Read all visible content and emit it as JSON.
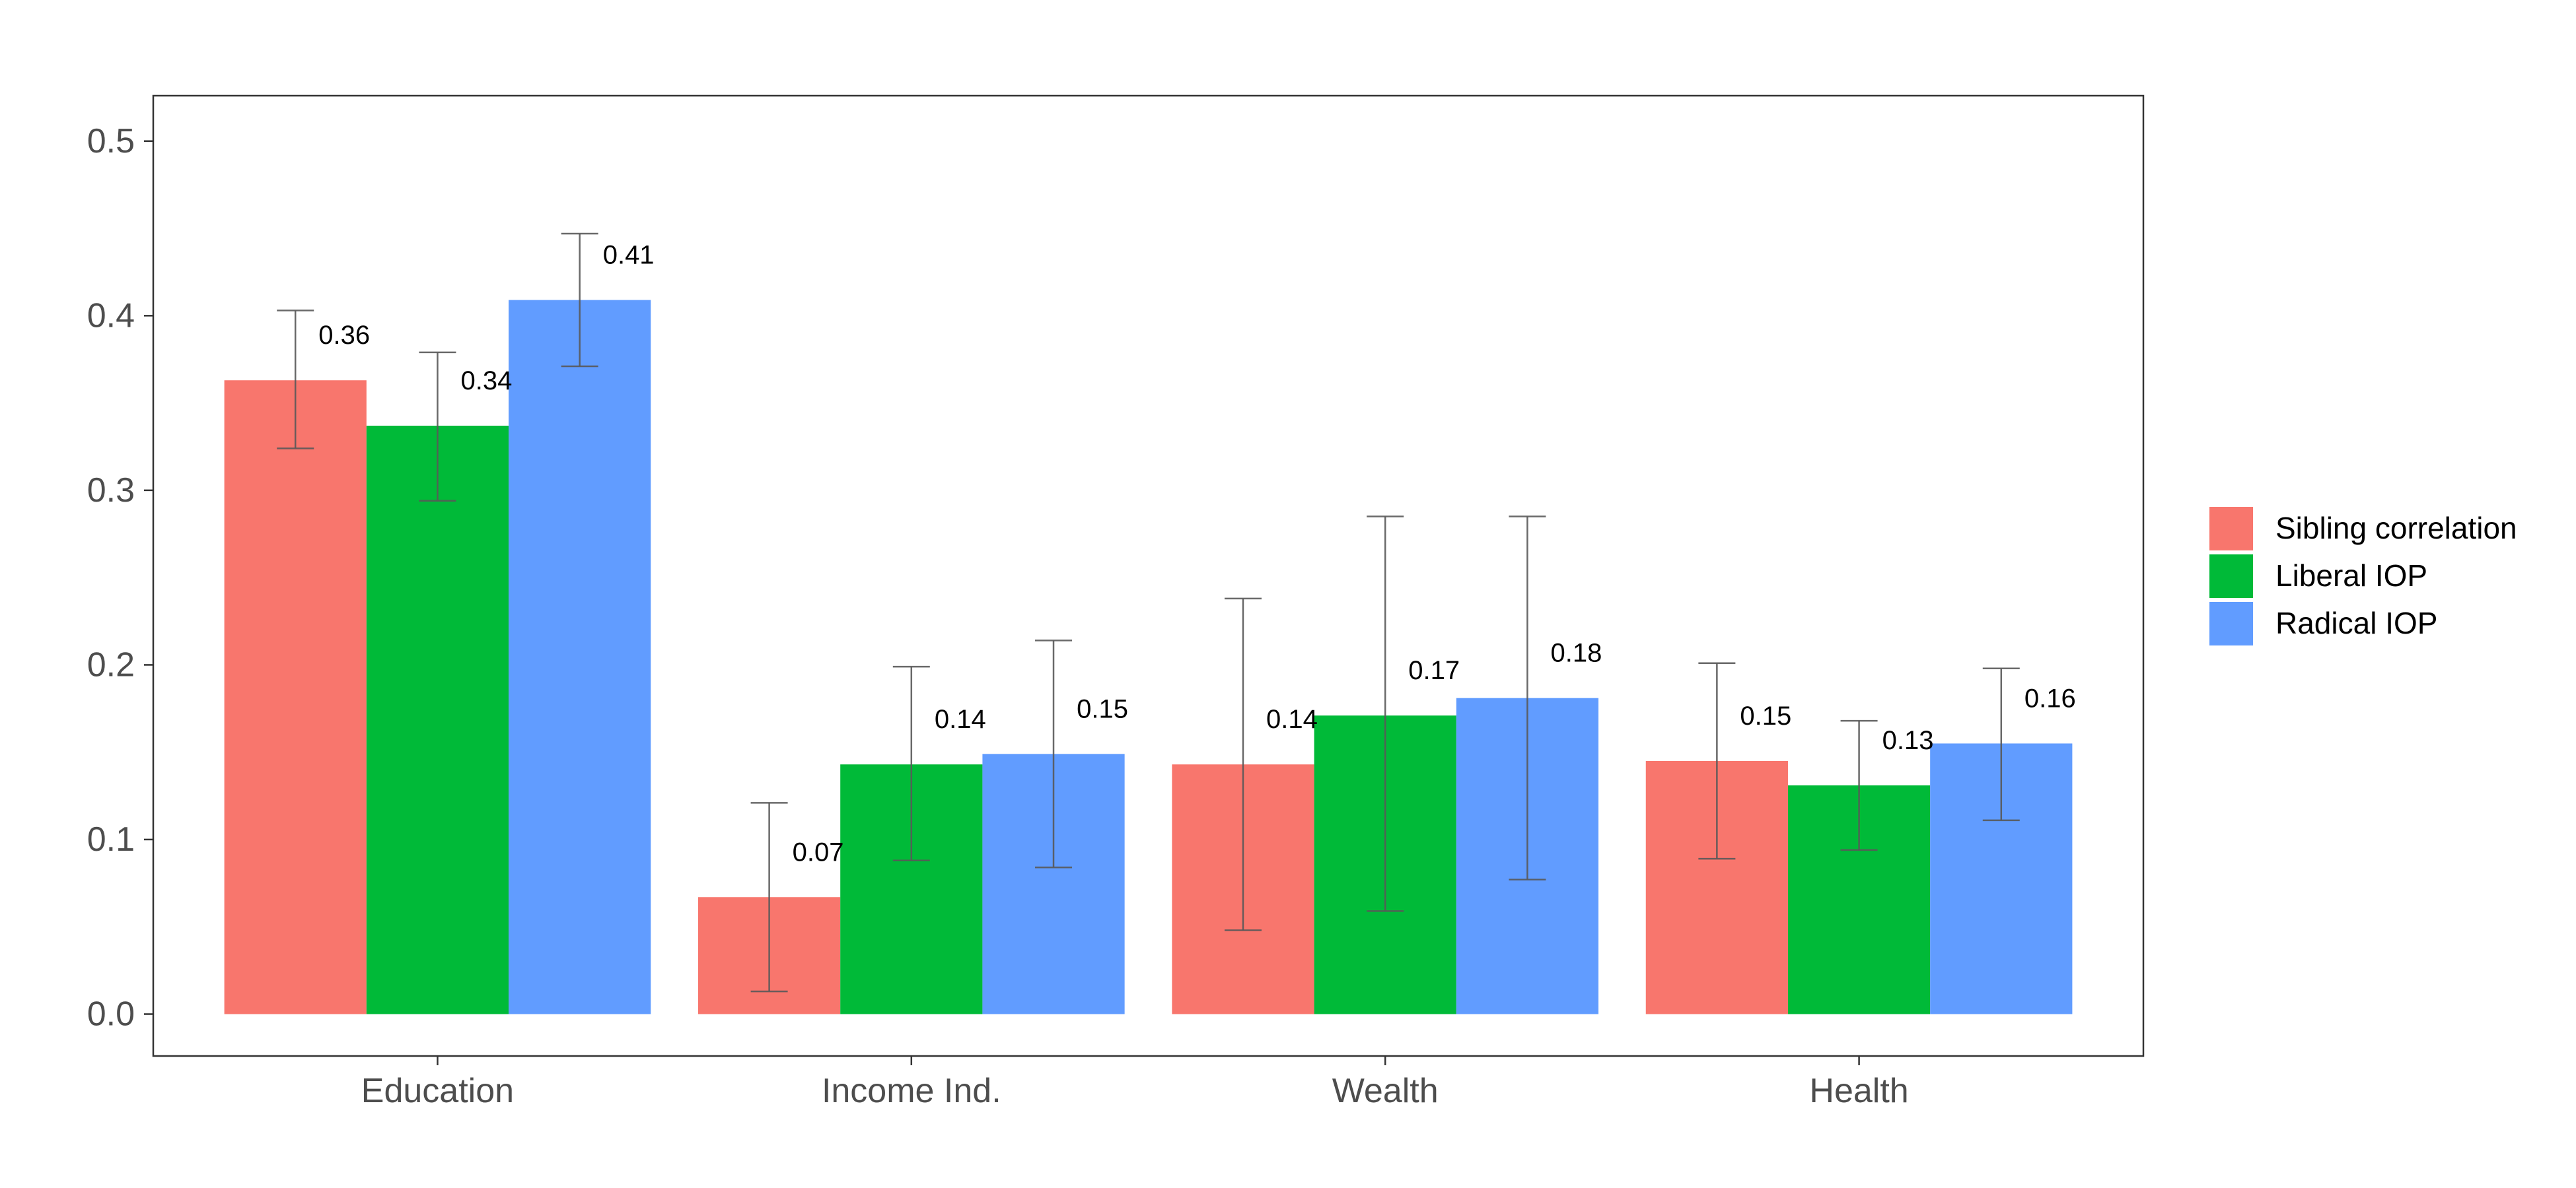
{
  "chart_data": {
    "type": "bar",
    "title": "",
    "xlabel": "",
    "ylabel": "",
    "ylim": [
      -0.024,
      0.526
    ],
    "yticks": [
      0.0,
      0.1,
      0.2,
      0.3,
      0.4,
      0.5
    ],
    "ytick_labels": [
      "0.0",
      "0.1",
      "0.2",
      "0.3",
      "0.4",
      "0.5"
    ],
    "categories": [
      "Education",
      "Income Ind.",
      "Wealth",
      "Health"
    ],
    "series": [
      {
        "name": "Sibling correlation",
        "color": "#F8766D",
        "values": [
          0.363,
          0.067,
          0.143,
          0.145
        ],
        "labels": [
          "0.36",
          "0.07",
          "0.14",
          "0.15"
        ],
        "error_low": [
          0.324,
          0.013,
          0.048,
          0.089
        ],
        "error_high": [
          0.403,
          0.121,
          0.238,
          0.201
        ]
      },
      {
        "name": "Liberal IOP",
        "color": "#00BA38",
        "values": [
          0.337,
          0.143,
          0.171,
          0.131
        ],
        "labels": [
          "0.34",
          "0.14",
          "0.17",
          "0.13"
        ],
        "error_low": [
          0.294,
          0.088,
          0.059,
          0.094
        ],
        "error_high": [
          0.379,
          0.199,
          0.285,
          0.168
        ]
      },
      {
        "name": "Radical IOP",
        "color": "#619CFF",
        "values": [
          0.409,
          0.149,
          0.181,
          0.155
        ],
        "labels": [
          "0.41",
          "0.15",
          "0.18",
          "0.16"
        ],
        "error_low": [
          0.371,
          0.084,
          0.077,
          0.111
        ],
        "error_high": [
          0.447,
          0.214,
          0.285,
          0.198
        ]
      }
    ],
    "grid": false,
    "legend": "right"
  }
}
